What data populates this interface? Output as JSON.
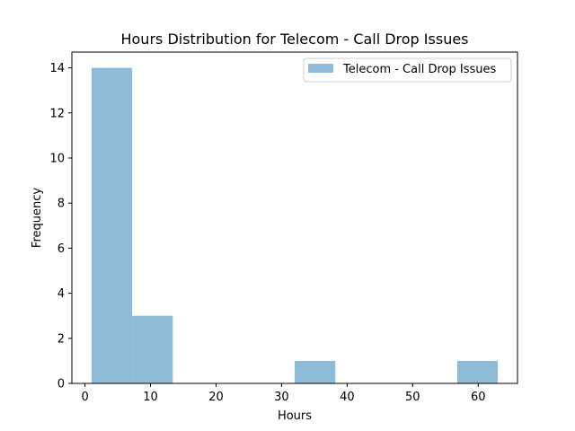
{
  "chart_data": {
    "type": "bar",
    "title": "Hours Distribution for Telecom - Call Drop Issues",
    "xlabel": "Hours",
    "ylabel": "Frequency",
    "xlim": [
      -2,
      66
    ],
    "ylim": [
      0,
      14.7
    ],
    "x_ticks": [
      0,
      10,
      20,
      30,
      40,
      50,
      60
    ],
    "y_ticks": [
      0,
      2,
      4,
      6,
      8,
      10,
      12,
      14
    ],
    "grid": false,
    "legend_position": "top-right",
    "series": [
      {
        "name": "Telecom - Call Drop Issues",
        "color": "#8fbbd9",
        "bins": [
          {
            "x_start": 1.0,
            "x_end": 7.2,
            "value": 14
          },
          {
            "x_start": 7.2,
            "x_end": 13.4,
            "value": 3
          },
          {
            "x_start": 13.4,
            "x_end": 19.6,
            "value": 0
          },
          {
            "x_start": 19.6,
            "x_end": 25.8,
            "value": 0
          },
          {
            "x_start": 25.8,
            "x_end": 32.0,
            "value": 0
          },
          {
            "x_start": 32.0,
            "x_end": 38.2,
            "value": 1
          },
          {
            "x_start": 38.2,
            "x_end": 44.4,
            "value": 0
          },
          {
            "x_start": 44.4,
            "x_end": 50.6,
            "value": 0
          },
          {
            "x_start": 50.6,
            "x_end": 56.8,
            "value": 0
          },
          {
            "x_start": 56.8,
            "x_end": 63.0,
            "value": 1
          }
        ]
      }
    ]
  }
}
